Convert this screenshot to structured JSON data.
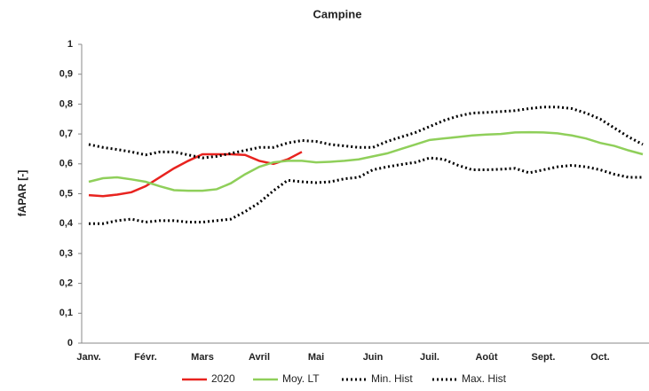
{
  "chart_data": {
    "type": "line",
    "title": "Campine",
    "y_label": "fAPAR [-]",
    "categories": [
      "Janv.",
      null,
      null,
      null,
      "Févr.",
      null,
      null,
      null,
      "Mars",
      null,
      null,
      null,
      "Avril",
      null,
      null,
      null,
      "Mai",
      null,
      null,
      null,
      "Juin",
      null,
      null,
      null,
      "Juil.",
      null,
      null,
      null,
      "Août",
      null,
      null,
      null,
      "Sept.",
      null,
      null,
      null,
      "Oct.",
      null,
      null,
      null
    ],
    "series": [
      {
        "name": "2020",
        "color": "#e8231f",
        "style": "solid",
        "values": [
          0.495,
          0.492,
          0.497,
          0.505,
          0.525,
          0.555,
          0.585,
          0.61,
          0.632,
          0.632,
          0.632,
          0.63,
          0.61,
          0.6,
          0.615,
          0.64,
          null,
          null,
          null,
          null,
          null,
          null,
          null,
          null,
          null,
          null,
          null,
          null,
          null,
          null,
          null,
          null,
          null,
          null,
          null,
          null,
          null,
          null,
          null,
          null
        ]
      },
      {
        "name": "Moy. LT",
        "color": "#8fcf5a",
        "style": "solid",
        "values": [
          0.54,
          0.552,
          0.555,
          0.548,
          0.54,
          0.525,
          0.512,
          0.51,
          0.51,
          0.515,
          0.535,
          0.565,
          0.59,
          0.605,
          0.61,
          0.61,
          0.605,
          0.607,
          0.61,
          0.615,
          0.625,
          0.635,
          0.65,
          0.665,
          0.68,
          0.685,
          0.69,
          0.695,
          0.698,
          0.7,
          0.705,
          0.706,
          0.705,
          0.702,
          0.695,
          0.685,
          0.67,
          0.66,
          0.645,
          0.632
        ]
      },
      {
        "name": "Min. Hist",
        "color": "#000000",
        "style": "dotted",
        "values": [
          0.4,
          0.4,
          0.41,
          0.415,
          0.405,
          0.41,
          0.41,
          0.405,
          0.405,
          0.41,
          0.415,
          0.44,
          0.47,
          0.51,
          0.545,
          0.54,
          0.537,
          0.54,
          0.55,
          0.555,
          0.58,
          0.59,
          0.598,
          0.605,
          0.62,
          0.615,
          0.595,
          0.58,
          0.58,
          0.582,
          0.585,
          0.57,
          0.58,
          0.59,
          0.595,
          0.59,
          0.58,
          0.565,
          0.555,
          0.555
        ]
      },
      {
        "name": "Max. Hist",
        "color": "#000000",
        "style": "dotted",
        "values": [
          0.665,
          0.655,
          0.648,
          0.64,
          0.63,
          0.64,
          0.64,
          0.63,
          0.62,
          0.625,
          0.635,
          0.645,
          0.655,
          0.655,
          0.67,
          0.678,
          0.675,
          0.665,
          0.66,
          0.655,
          0.655,
          0.675,
          0.69,
          0.705,
          0.725,
          0.745,
          0.76,
          0.77,
          0.772,
          0.775,
          0.778,
          0.785,
          0.79,
          0.79,
          0.785,
          0.77,
          0.75,
          0.72,
          0.69,
          0.665
        ]
      }
    ],
    "ylim": [
      0,
      1
    ],
    "yticks": [
      0,
      {
        "value": 0.1,
        "label": "0,1"
      },
      {
        "value": 0.2,
        "label": "0,2"
      },
      {
        "value": 0.3,
        "label": "0,3"
      },
      {
        "value": 0.4,
        "label": "0,4"
      },
      {
        "value": 0.5,
        "label": "0,5"
      },
      {
        "value": 0.6,
        "label": "0,6"
      },
      {
        "value": 0.7,
        "label": "0,7"
      },
      {
        "value": 0.8,
        "label": "0,8"
      },
      {
        "value": 0.9,
        "label": "0,9"
      },
      1
    ],
    "grid": false,
    "legend": "bottom"
  }
}
